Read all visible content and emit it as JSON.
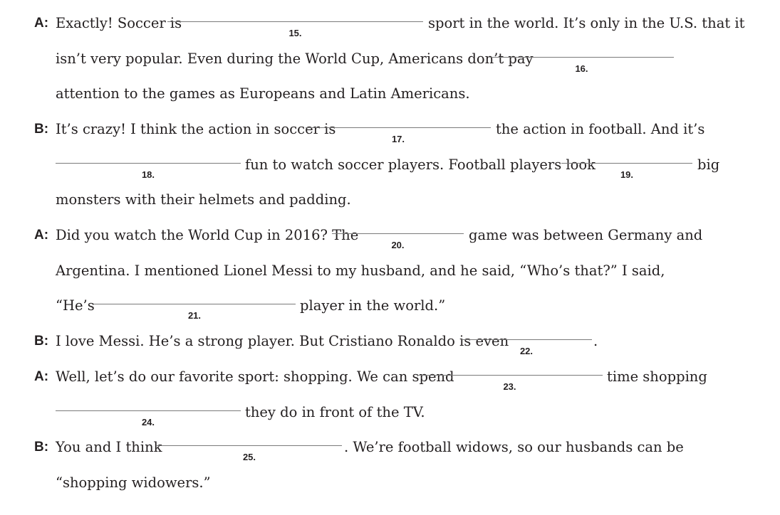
{
  "lines": [
    {
      "speaker": "A:",
      "segments": [
        "Exactly! Soccer is",
        "sport in the world. It’s only in the U.S. that it"
      ],
      "blanks": [
        "15."
      ]
    },
    {
      "segments": [
        "isn’t very popular. Even during the World Cup, Americans don’t pay"
      ],
      "blanks": [
        "16."
      ]
    },
    {
      "segments": [
        "attention to the games as Europeans and Latin Americans."
      ]
    },
    {
      "speaker": "B:",
      "segments": [
        "It’s crazy! I think the action in soccer is",
        "the action in football. And it’s"
      ],
      "blanks": [
        "17."
      ]
    },
    {
      "segments": [
        "fun to watch soccer players. Football players look",
        "big"
      ],
      "blanks": [
        "18.",
        "19."
      ]
    },
    {
      "segments": [
        "monsters with their helmets and padding."
      ]
    },
    {
      "speaker": "A:",
      "segments": [
        "Did you watch the World Cup in 2016? The",
        "game was between Germany and"
      ],
      "blanks": [
        "20."
      ]
    },
    {
      "segments": [
        "Argentina. I mentioned Lionel Messi to my husband, and he said, “Who’s that?” I said,"
      ]
    },
    {
      "segments": [
        "“He’s",
        "player in the world.”"
      ],
      "blanks": [
        "21."
      ]
    },
    {
      "speaker": "B:",
      "segments": [
        "I love Messi. He’s a strong player. But Cristiano Ronaldo is even",
        "."
      ],
      "blanks": [
        "22."
      ]
    },
    {
      "speaker": "A:",
      "segments": [
        "Well, let’s do our favorite sport: shopping. We can spend",
        "time shopping"
      ],
      "blanks": [
        "23."
      ]
    },
    {
      "segments": [
        "they do in front of the TV."
      ],
      "blanks": [
        "24."
      ]
    },
    {
      "speaker": "B:",
      "segments": [
        "You and I think",
        ". We’re football widows, so our husbands can be"
      ],
      "blanks": [
        "25."
      ]
    },
    {
      "segments": [
        "“shopping widowers.”"
      ]
    }
  ]
}
